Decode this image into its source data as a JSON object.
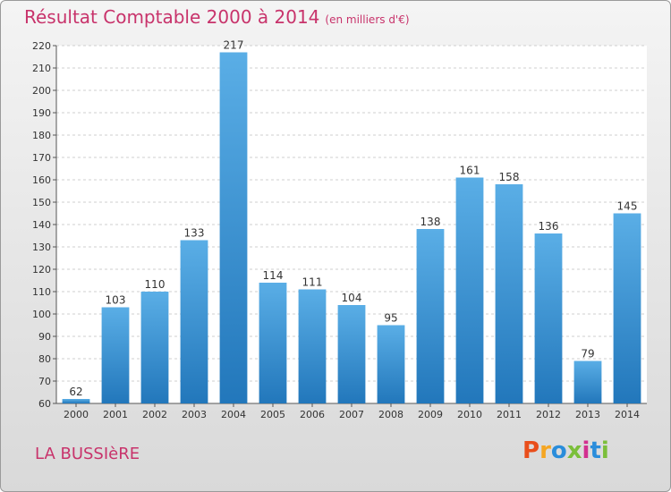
{
  "header": {
    "title": "Résultat Comptable 2000 à 2014",
    "subtitle": "(en milliers d'€)"
  },
  "footer": {
    "place": "LA BUSSIèRE",
    "logo": "Proxiti",
    "logo_colors": [
      "#e94e1b",
      "#f5a623",
      "#2a8ddb",
      "#7bbf3a",
      "#d2308f",
      "#2a8ddb",
      "#7bbf3a"
    ]
  },
  "colors": {
    "bar_top": "#5aaee6",
    "bar_bottom": "#2277bb",
    "title": "#c8336b"
  },
  "chart_data": {
    "type": "bar",
    "title": "Résultat Comptable 2000 à 2014",
    "subtitle": "(en milliers d'€)",
    "categories": [
      "2000",
      "2001",
      "2002",
      "2003",
      "2004",
      "2005",
      "2006",
      "2007",
      "2008",
      "2009",
      "2010",
      "2011",
      "2012",
      "2013",
      "2014"
    ],
    "values": [
      62,
      103,
      110,
      133,
      217,
      114,
      111,
      104,
      95,
      138,
      161,
      158,
      136,
      79,
      145
    ],
    "ylim": [
      60,
      220
    ],
    "yticks": [
      60,
      70,
      80,
      90,
      100,
      110,
      120,
      130,
      140,
      150,
      160,
      170,
      180,
      190,
      200,
      210,
      220
    ],
    "grid": true
  }
}
